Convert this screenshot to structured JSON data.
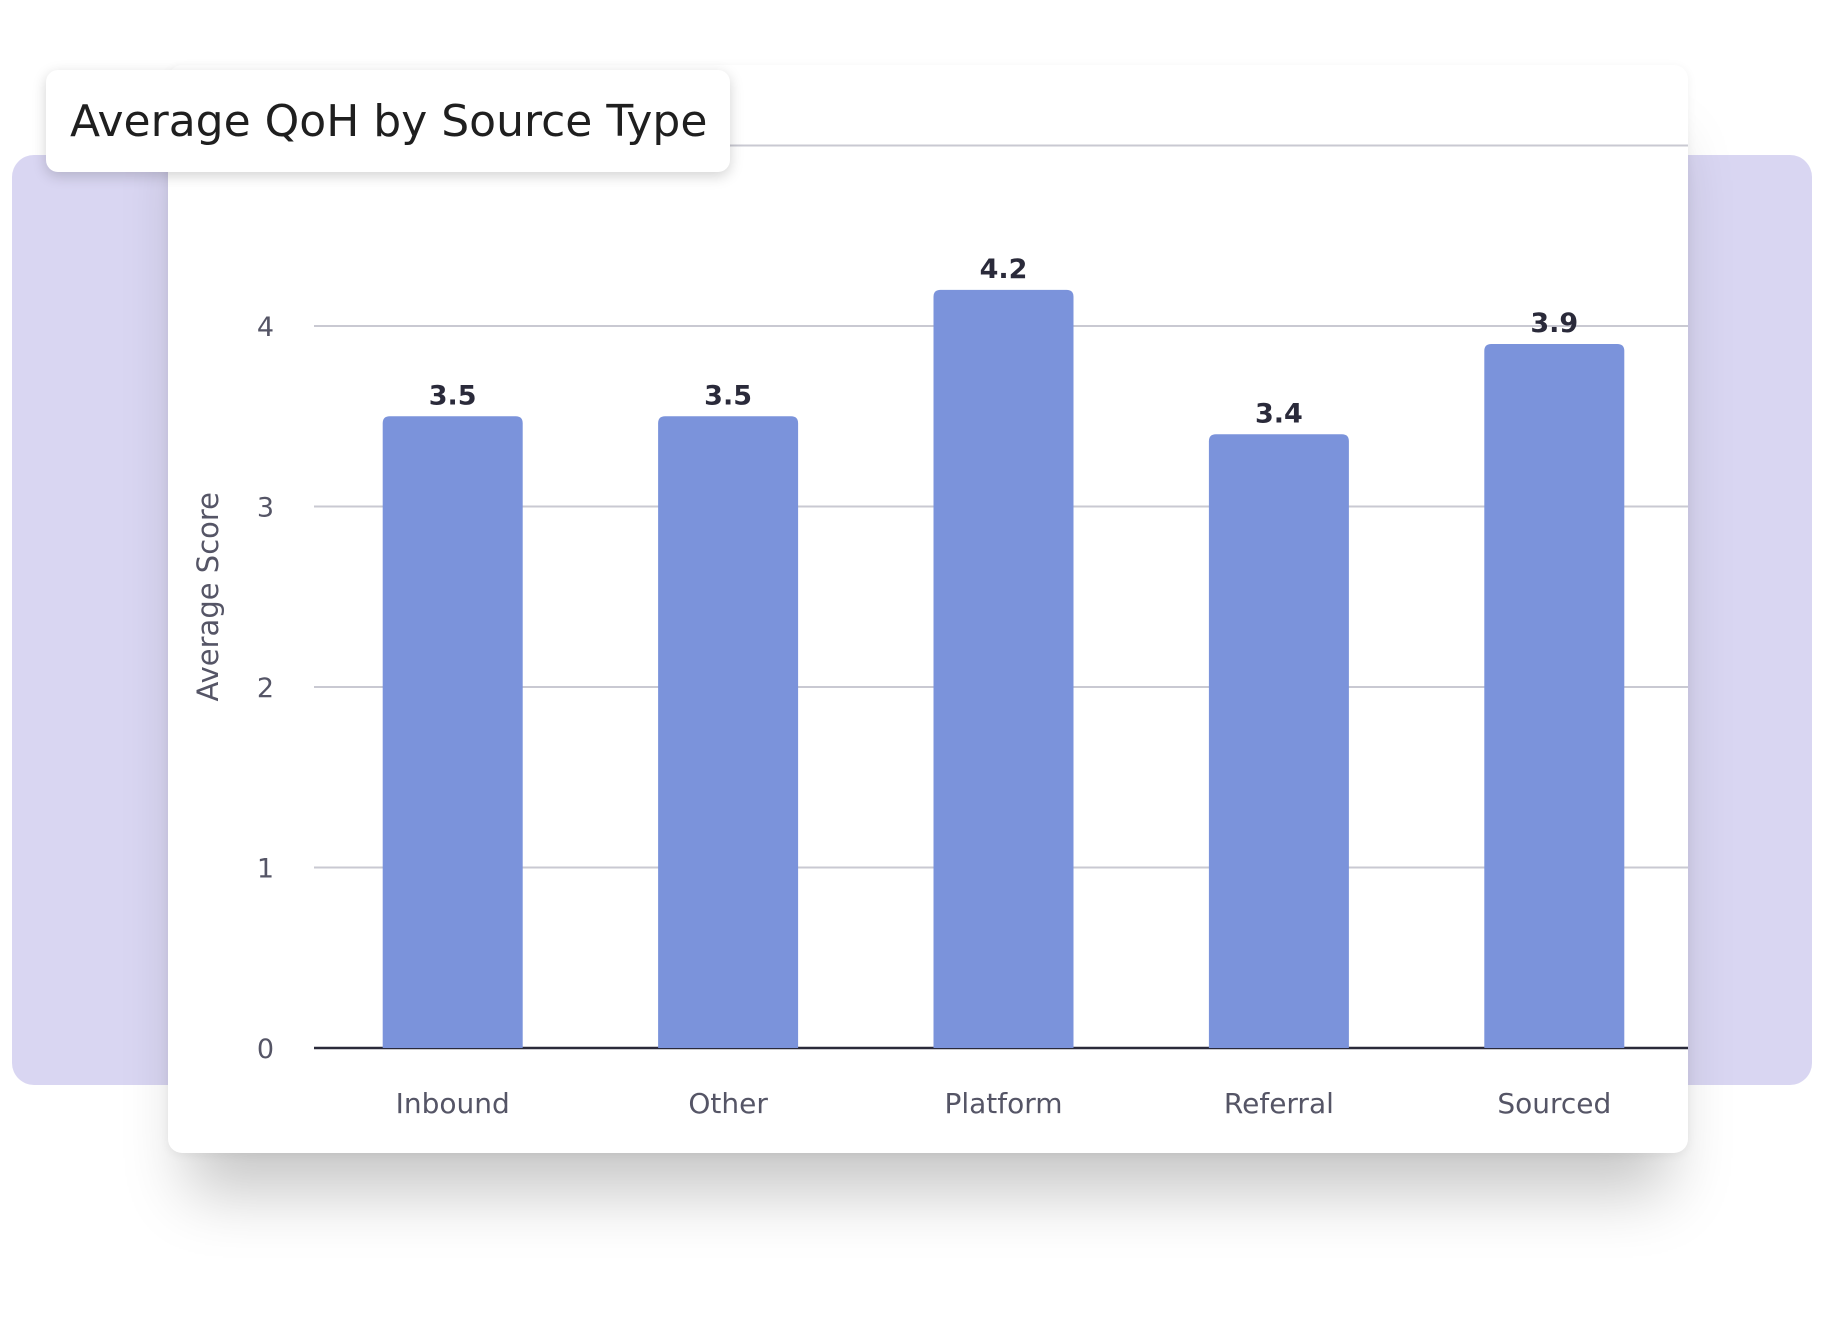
{
  "colors": {
    "bar": "#7b93db",
    "backdrop": "#d9d6f2",
    "grid": "#c9c9d2",
    "baseline": "#2a2a3a"
  },
  "chart_data": {
    "type": "bar",
    "title": "Average QoH by Source Type",
    "xlabel": "",
    "ylabel": "Average Score",
    "categories": [
      "Inbound",
      "Other",
      "Platform",
      "Referral",
      "Sourced"
    ],
    "values": [
      3.5,
      3.5,
      4.2,
      3.4,
      3.9
    ],
    "value_labels": [
      "3.5",
      "3.5",
      "4.2",
      "3.4",
      "3.9"
    ],
    "yticks": [
      0,
      1,
      2,
      3,
      4
    ],
    "ylim": [
      0,
      5
    ],
    "grid": true,
    "legend": "none"
  }
}
